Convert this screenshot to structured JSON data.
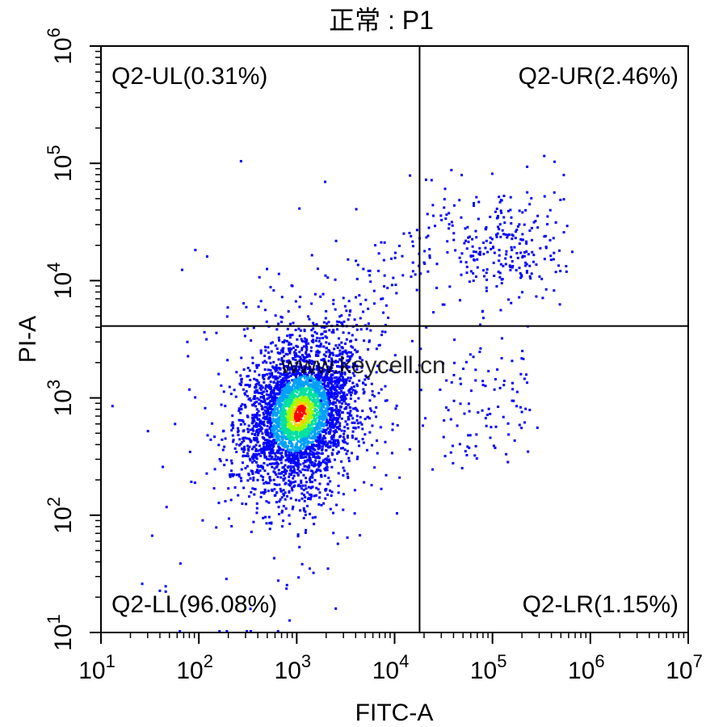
{
  "chart_data": {
    "type": "scatter",
    "title": "正常 : P1",
    "xlabel": "FITC-A",
    "ylabel": "PI-A",
    "x_scale": "log",
    "y_scale": "log",
    "xlim": [
      10,
      10000000
    ],
    "ylim": [
      10,
      1000000
    ],
    "x_ticks": [
      {
        "value": 10,
        "base": "10",
        "exp": "1"
      },
      {
        "value": 100,
        "base": "10",
        "exp": "2"
      },
      {
        "value": 1000,
        "base": "10",
        "exp": "3"
      },
      {
        "value": 10000,
        "base": "10",
        "exp": "4"
      },
      {
        "value": 100000,
        "base": "10",
        "exp": "5"
      },
      {
        "value": 1000000,
        "base": "10",
        "exp": "6"
      },
      {
        "value": 10000000,
        "base": "10",
        "exp": "7"
      }
    ],
    "y_ticks": [
      {
        "value": 10,
        "base": "10",
        "exp": "1"
      },
      {
        "value": 100,
        "base": "10",
        "exp": "2"
      },
      {
        "value": 1000,
        "base": "10",
        "exp": "3"
      },
      {
        "value": 10000,
        "base": "10",
        "exp": "4"
      },
      {
        "value": 100000,
        "base": "10",
        "exp": "5"
      },
      {
        "value": 1000000,
        "base": "10",
        "exp": "6"
      }
    ],
    "gate": {
      "x": 18000,
      "y": 4100
    },
    "quadrants": [
      {
        "id": "UL",
        "label": "Q2-UL(0.31%)",
        "percent": 0.31
      },
      {
        "id": "UR",
        "label": "Q2-UR(2.46%)",
        "percent": 2.46
      },
      {
        "id": "LL",
        "label": "Q2-LL(96.08%)",
        "percent": 96.08
      },
      {
        "id": "LR",
        "label": "Q2-LR(1.15%)",
        "percent": 1.15
      }
    ],
    "populations": [
      {
        "name": "main",
        "center_x": 1050,
        "center_y": 750,
        "spread_x_decades": 0.28,
        "spread_y_decades": 0.3
      },
      {
        "name": "upper-right",
        "center_x": 130000,
        "center_y": 20000,
        "spread_x_decades": 0.3,
        "spread_y_decades": 0.28
      }
    ],
    "density_colors": [
      "#0000ff",
      "#00a0ff",
      "#00e0a0",
      "#a0ff00",
      "#ffd000",
      "#ff0000"
    ],
    "watermark": "www.keycell.cn",
    "grid": false,
    "legend": "none"
  }
}
